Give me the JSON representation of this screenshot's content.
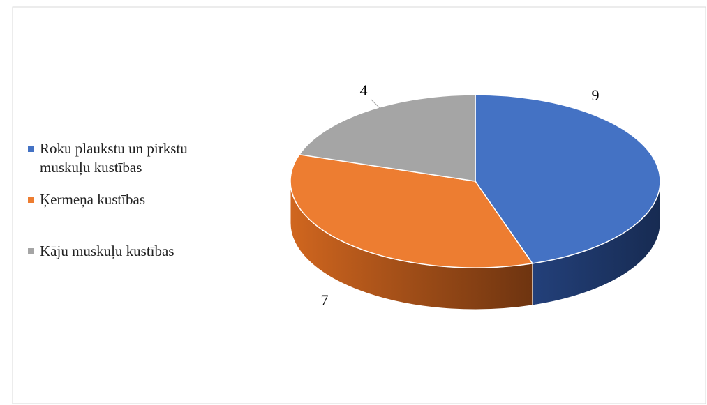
{
  "chart_data": {
    "type": "pie",
    "categories": [
      "Roku plaukstu un pirkstu muskuļu kustības",
      "Ķermeņa kustības",
      "Kāju muskuļu kustības"
    ],
    "values": [
      9,
      7,
      4
    ],
    "colors": [
      "#4472c4",
      "#ed7d31",
      "#a5a5a5"
    ],
    "legend": "left"
  }
}
